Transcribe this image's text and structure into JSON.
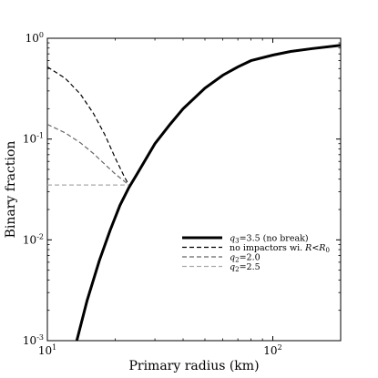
{
  "chart_data": {
    "type": "line",
    "xlabel": "Primary radius (km)",
    "ylabel": "Binary fraction",
    "xscale": "log",
    "yscale": "log",
    "xlim": [
      10,
      200
    ],
    "ylim": [
      0.001,
      1
    ],
    "x_ticks": [
      {
        "value": 10,
        "base": "10",
        "exp": "1"
      },
      {
        "value": 100,
        "base": "10",
        "exp": "2"
      }
    ],
    "y_ticks": [
      {
        "value": 0.001,
        "base": "10",
        "exp": "-3"
      },
      {
        "value": 0.01,
        "base": "10",
        "exp": "-2"
      },
      {
        "value": 0.1,
        "base": "10",
        "exp": "-1"
      },
      {
        "value": 1,
        "base": "10",
        "exp": "0"
      }
    ],
    "legend_position": "center-right",
    "series": [
      {
        "name": "q3=3.5 (no break)",
        "color": "#000000",
        "style": "solid",
        "x": [
          13.5,
          15,
          17,
          19,
          21,
          23,
          25,
          30,
          35,
          40,
          50,
          60,
          70,
          80,
          100,
          120,
          150,
          200
        ],
        "y": [
          0.001,
          0.0025,
          0.0062,
          0.0125,
          0.022,
          0.033,
          0.045,
          0.09,
          0.14,
          0.2,
          0.32,
          0.43,
          0.52,
          0.6,
          0.68,
          0.74,
          0.79,
          0.85
        ]
      },
      {
        "name": "no impactors wi. R<R0",
        "color": "#000000",
        "style": "dashed",
        "x": [
          10,
          12,
          14,
          16,
          18,
          20,
          22,
          23
        ],
        "y": [
          0.52,
          0.4,
          0.28,
          0.18,
          0.11,
          0.065,
          0.042,
          0.035
        ]
      },
      {
        "name": "q2=2.0",
        "color": "#666666",
        "style": "dashed",
        "x": [
          10,
          12,
          14,
          16,
          18,
          20,
          22,
          23
        ],
        "y": [
          0.14,
          0.115,
          0.092,
          0.072,
          0.056,
          0.045,
          0.038,
          0.035
        ]
      },
      {
        "name": "q2=2.5",
        "color": "#aaaaaa",
        "style": "dashed",
        "x": [
          10,
          23
        ],
        "y": [
          0.035,
          0.035
        ]
      }
    ],
    "legend": [
      {
        "sym": "q",
        "sub": "3",
        "rest": "=3.5 (no break)"
      },
      {
        "plain": "no impactors wi. ",
        "sym": "R",
        "mid": "<",
        "sym2": "R",
        "sub2": "0"
      },
      {
        "sym": "q",
        "sub": "2",
        "rest": "=2.0"
      },
      {
        "sym": "q",
        "sub": "2",
        "rest": "=2.5"
      }
    ]
  }
}
